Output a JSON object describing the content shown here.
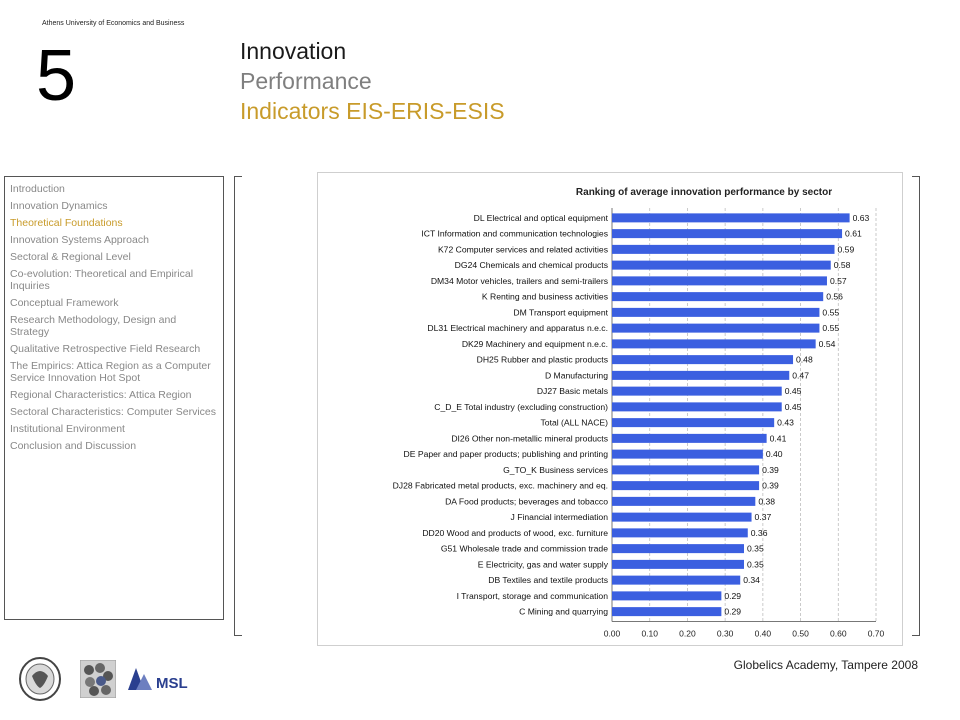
{
  "header": {
    "university": "Athens University of Economics and Business",
    "section_number": "5",
    "title_line1": "Innovation",
    "title_line2": "Performance",
    "title_line3": "Indicators EIS-ERIS-ESIS"
  },
  "colors": {
    "accent": "#c89b2a",
    "bar": "#3b5fe0",
    "gray": "#7f7f7f"
  },
  "nav": {
    "active_index": 2,
    "items": [
      "Introduction",
      "Innovation Dynamics",
      "Theoretical Foundations",
      "Innovation Systems Approach",
      "Sectoral & Regional Level",
      "Co-evolution: Theoretical and Empirical Inquiries",
      "Conceptual Framework",
      "Research Methodology, Design and Strategy",
      "Qualitative Retrospective Field Research",
      "The Empirics: Attica Region as a Computer Service Innovation Hot Spot",
      "Regional Characteristics: Attica Region",
      "Sectoral Characteristics: Computer Services",
      "Institutional Environment",
      "Conclusion and Discussion"
    ]
  },
  "footer": {
    "text": "Globelics Academy, Tampere 2008"
  },
  "logos": [
    "aueb-seal-logo",
    "dots-logo",
    "msl-logo"
  ],
  "msl_text": "MSL",
  "chart_data": {
    "type": "bar",
    "orientation": "horizontal",
    "title": "Ranking of average innovation performance by sector",
    "xlim": [
      0,
      0.7
    ],
    "xticks": [
      "0.00",
      "0.10",
      "0.20",
      "0.30",
      "0.40",
      "0.50",
      "0.60",
      "0.70"
    ],
    "grid": "vertical-dashed",
    "categories": [
      "DL Electrical and optical equipment",
      "ICT Information and communication technologies",
      "K72 Computer services and related activities",
      "DG24 Chemicals and chemical products",
      "DM34 Motor vehicles, trailers and semi-trailers",
      "K Renting and business activities",
      "DM Transport equipment",
      "DL31 Electrical machinery and apparatus n.e.c.",
      "DK29 Machinery and equipment n.e.c.",
      "DH25 Rubber and plastic products",
      "D Manufacturing",
      "DJ27 Basic metals",
      "C_D_E Total industry (excluding construction)",
      "Total (ALL NACE)",
      "DI26 Other non-metallic mineral products",
      "DE Paper and paper products; publishing and printing",
      "G_TO_K Business services",
      "DJ28 Fabricated metal products, exc. machinery and eq.",
      "DA Food products; beverages and tobacco",
      "J Financial intermediation",
      "DD20 Wood and products of wood, exc. furniture",
      "G51 Wholesale trade and commission trade",
      "E Electricity, gas and water supply",
      "DB Textiles and textile products",
      "I Transport, storage and communication",
      "C Mining and quarrying"
    ],
    "values": [
      0.63,
      0.61,
      0.59,
      0.58,
      0.57,
      0.56,
      0.55,
      0.55,
      0.54,
      0.48,
      0.47,
      0.45,
      0.45,
      0.43,
      0.41,
      0.4,
      0.39,
      0.39,
      0.38,
      0.37,
      0.36,
      0.35,
      0.35,
      0.34,
      0.29,
      0.29
    ],
    "labels": [
      "0.63",
      "0.61",
      "0.59",
      "0.58",
      "0.57",
      "0.56",
      "0.55",
      "0.55",
      "0.54",
      "0.48",
      "0.47",
      "0.45",
      "0.45",
      "0.43",
      "0.41",
      "0.40",
      "0.39",
      "0.39",
      "0.38",
      "0.37",
      "0.36",
      "0.35",
      "0.35",
      "0.34",
      "0.29",
      "0.29"
    ]
  }
}
